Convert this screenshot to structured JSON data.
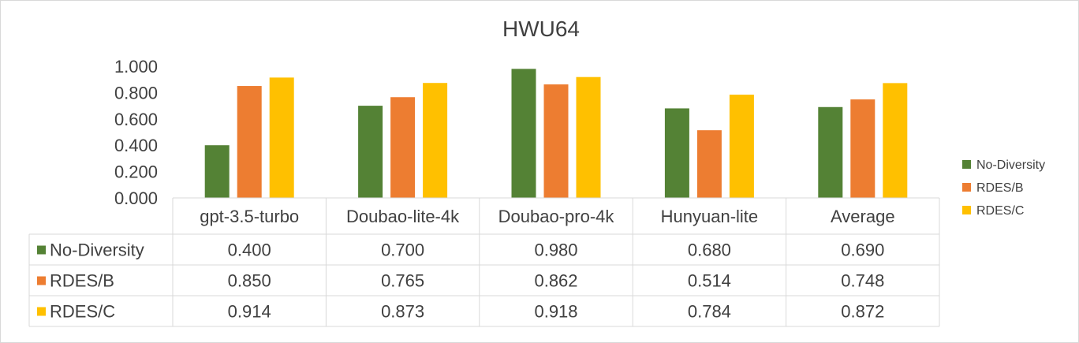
{
  "chart_data": {
    "type": "bar",
    "title": "HWU64",
    "categories": [
      "gpt-3.5-turbo",
      "Doubao-lite-4k",
      "Doubao-pro-4k",
      "Hunyuan-lite",
      "Average"
    ],
    "series": [
      {
        "name": "No-Diversity",
        "values": [
          0.4,
          0.7,
          0.98,
          0.68,
          0.69
        ],
        "labels": [
          "0.400",
          "0.700",
          "0.980",
          "0.680",
          "0.690"
        ],
        "color": "#548235"
      },
      {
        "name": "RDES/B",
        "values": [
          0.85,
          0.765,
          0.862,
          0.514,
          0.748
        ],
        "labels": [
          "0.850",
          "0.765",
          "0.862",
          "0.514",
          "0.748"
        ],
        "color": "#ed7d31"
      },
      {
        "name": "RDES/C",
        "values": [
          0.914,
          0.873,
          0.918,
          0.784,
          0.872
        ],
        "labels": [
          "0.914",
          "0.873",
          "0.918",
          "0.784",
          "0.872"
        ],
        "color": "#ffc000"
      }
    ],
    "ylim": [
      0,
      1
    ],
    "yticks": [
      "0.000",
      "0.200",
      "0.400",
      "0.600",
      "0.800",
      "1.000"
    ],
    "legend_position": "right",
    "data_table": true,
    "grid": false
  }
}
